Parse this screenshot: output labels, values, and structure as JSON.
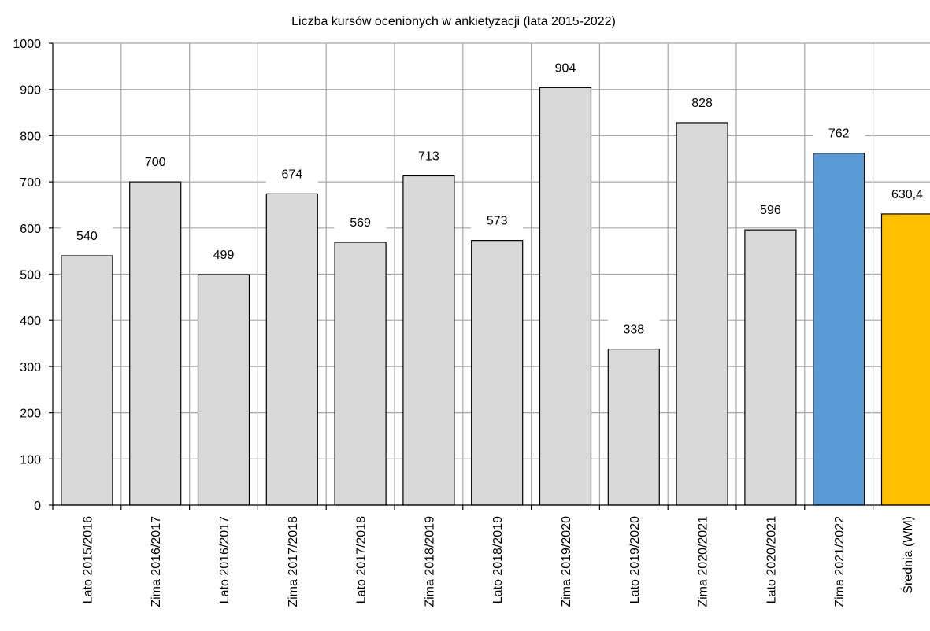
{
  "chart_data": {
    "type": "bar",
    "title": "Liczba kursów ocenionych w ankietyzacji (lata 2015-2022)",
    "xlabel": "",
    "ylabel": "",
    "ylim": [
      0,
      1000
    ],
    "yticks": [
      "0",
      "100",
      "200",
      "300",
      "400",
      "500",
      "600",
      "700",
      "800",
      "900",
      "1000"
    ],
    "grid": true,
    "categories": [
      "Lato 2015/2016",
      "Zima 2016/2017",
      "Lato 2016/2017",
      "Zima 2017/2018",
      "Lato 2017/2018",
      "Zima 2018/2019",
      "Lato 2018/2019",
      "Zima 2019/2020",
      "Lato 2019/2020",
      "Zima 2020/2021",
      "Lato 2020/2021",
      "Zima 2021/2022",
      "Średnia (WM)"
    ],
    "values": [
      540,
      700,
      499,
      674,
      569,
      713,
      573,
      904,
      338,
      828,
      596,
      762,
      630.4
    ],
    "value_labels": [
      "540",
      "700",
      "499",
      "674",
      "569",
      "713",
      "573",
      "904",
      "338",
      "828",
      "596",
      "762",
      "630,4"
    ],
    "colors": [
      "#d9d9d9",
      "#d9d9d9",
      "#d9d9d9",
      "#d9d9d9",
      "#d9d9d9",
      "#d9d9d9",
      "#d9d9d9",
      "#d9d9d9",
      "#d9d9d9",
      "#d9d9d9",
      "#d9d9d9",
      "#5b9bd5",
      "#ffc000"
    ]
  }
}
